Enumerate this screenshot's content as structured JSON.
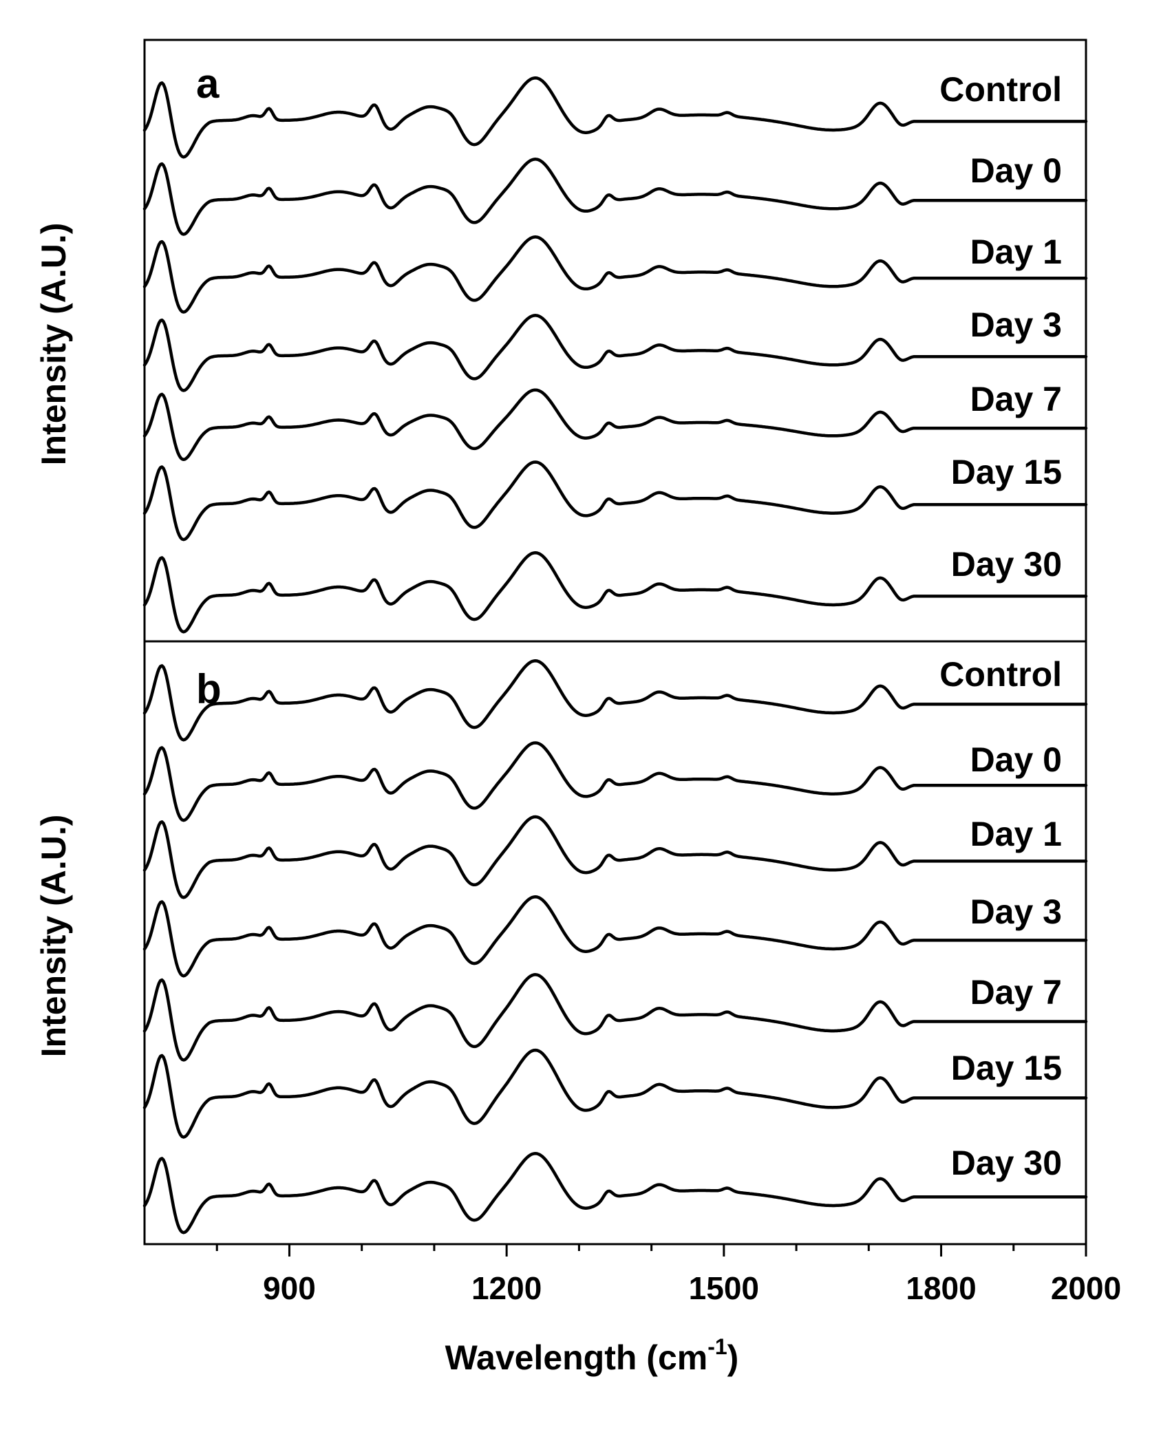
{
  "chart_data": {
    "type": "line",
    "xlabel": "Wavelength (cm",
    "xlabel_sup": "-1",
    "xlabel_close": ")",
    "xlim": [
      700,
      2000
    ],
    "x_ticks": [
      900,
      1200,
      1500,
      1800,
      2000
    ],
    "x_tick_labels": [
      "900",
      "1200",
      "1500",
      "1800",
      "2000"
    ],
    "x_minor_ticks": [
      800,
      1000,
      1100,
      1300,
      1400,
      1600,
      1700,
      1900
    ],
    "peaks_cm1": [
      725,
      875,
      1018,
      1095,
      1240,
      1340,
      1410,
      1505,
      1715
    ],
    "panels": [
      {
        "label": "a",
        "ylabel": "Intensity (A.U.)",
        "series": [
          {
            "name": "Control",
            "amplitude": 1.0
          },
          {
            "name": "Day 0",
            "amplitude": 0.95
          },
          {
            "name": "Day 1",
            "amplitude": 0.95
          },
          {
            "name": "Day 3",
            "amplitude": 0.95
          },
          {
            "name": "Day 7",
            "amplitude": 0.88
          },
          {
            "name": "Day 15",
            "amplitude": 0.98
          },
          {
            "name": "Day 30",
            "amplitude": 1.0
          }
        ]
      },
      {
        "label": "b",
        "ylabel": "Intensity (A.U.)",
        "series": [
          {
            "name": "Control",
            "amplitude": 1.0
          },
          {
            "name": "Day 0",
            "amplitude": 0.98
          },
          {
            "name": "Day 1",
            "amplitude": 1.02
          },
          {
            "name": "Day 3",
            "amplitude": 1.0
          },
          {
            "name": "Day 7",
            "amplitude": 1.08
          },
          {
            "name": "Day 15",
            "amplitude": 1.1
          },
          {
            "name": "Day 30",
            "amplitude": 1.0
          }
        ]
      }
    ]
  }
}
